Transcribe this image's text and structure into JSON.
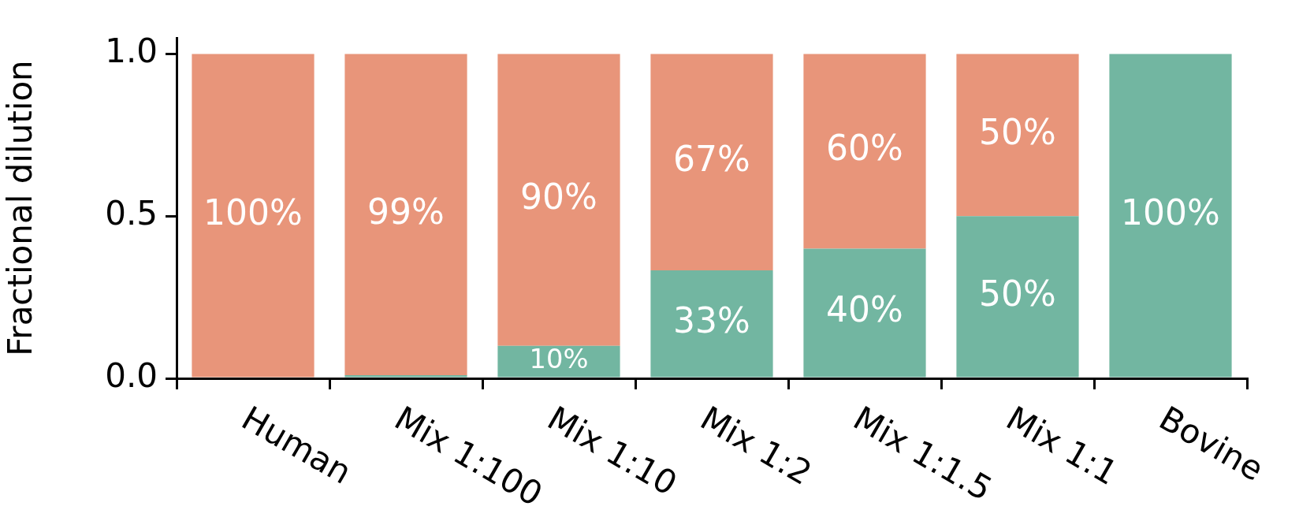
{
  "chart_data": {
    "type": "bar",
    "stacked": true,
    "ylabel": "Fractional dilution",
    "categories": [
      "Human",
      "Mix 1:100",
      "Mix 1:10",
      "Mix 1:2",
      "Mix 1:1.5",
      "Mix 1:1",
      "Bovine"
    ],
    "series": [
      {
        "color": "#72b6a1",
        "values": [
          0,
          0.01,
          0.1,
          0.333,
          0.4,
          0.5,
          1
        ],
        "value_labels": [
          null,
          null,
          "10%",
          "33%",
          "40%",
          "50%",
          "100%"
        ]
      },
      {
        "color": "#e8957a",
        "values": [
          1,
          0.99,
          0.9,
          0.667,
          0.6,
          0.5,
          0
        ],
        "value_labels": [
          "100%",
          "99%",
          "90%",
          "67%",
          "60%",
          "50%",
          null
        ]
      }
    ],
    "ylim": [
      0,
      1.05
    ],
    "yticks": [
      {
        "value": 0,
        "label": "0.0"
      },
      0.5,
      {
        "value": 1,
        "label": "1.0"
      }
    ],
    "grid": false,
    "legend": false
  }
}
